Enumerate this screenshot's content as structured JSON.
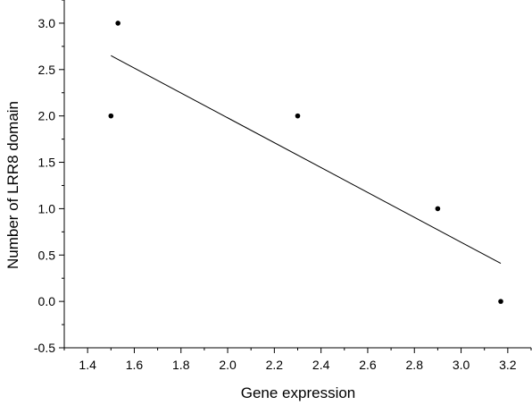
{
  "chart_data": {
    "type": "scatter",
    "title": "",
    "xlabel": "Gene expression",
    "ylabel": "Number of LRR8 domain",
    "xlim": [
      1.3,
      3.3
    ],
    "ylim": [
      -0.5,
      3.25
    ],
    "x_ticks": [
      "1.4",
      "1.6",
      "1.8",
      "2.0",
      "2.2",
      "2.4",
      "2.6",
      "2.8",
      "3.0",
      "3.2"
    ],
    "y_ticks": [
      "-0.5",
      "0.0",
      "0.5",
      "1.0",
      "1.5",
      "2.0",
      "2.5",
      "3.0"
    ],
    "grid": false,
    "legend": "none",
    "points": [
      {
        "x": 1.5,
        "y": 2.0
      },
      {
        "x": 1.53,
        "y": 3.0
      },
      {
        "x": 2.3,
        "y": 2.0
      },
      {
        "x": 2.9,
        "y": 1.0
      },
      {
        "x": 3.17,
        "y": 0.0
      }
    ],
    "fit_line": {
      "x": [
        1.5,
        3.17
      ],
      "y": [
        2.65,
        0.41
      ]
    },
    "colors": {
      "marker": "#000000",
      "line": "#000000",
      "axes": "#000000"
    }
  }
}
